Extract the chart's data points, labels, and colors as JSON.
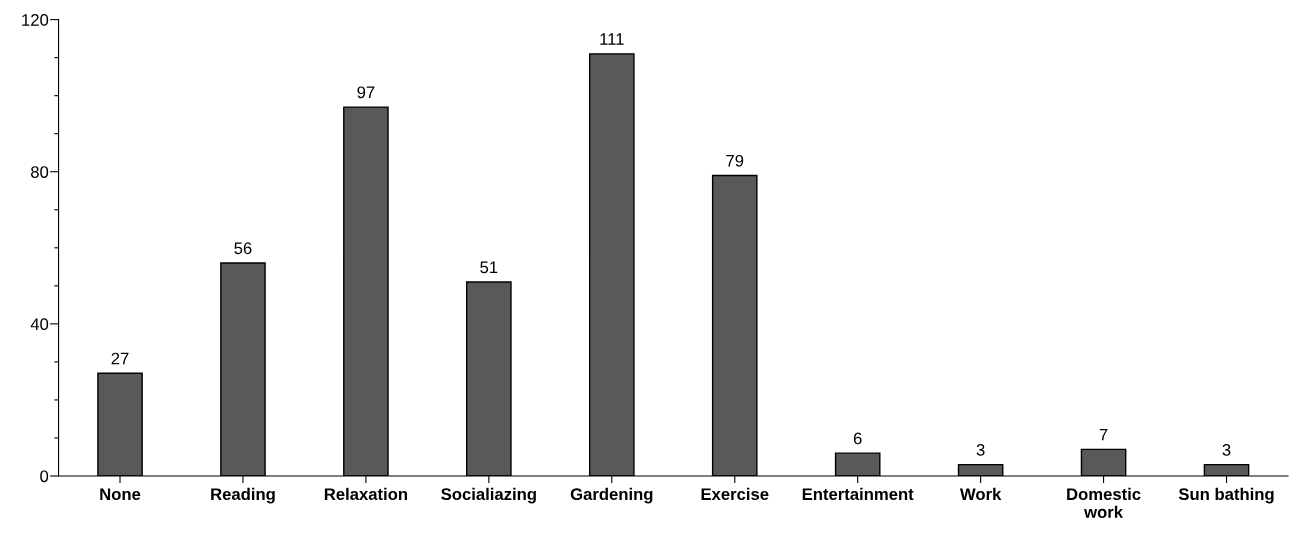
{
  "chart_data": {
    "type": "bar",
    "categories": [
      "None",
      "Reading",
      "Relaxation",
      "Socialiazing",
      "Gardening",
      "Exercise",
      "Entertainment",
      "Work",
      "Domestic\nwork",
      "Sun bathing"
    ],
    "values": [
      27,
      56,
      97,
      51,
      111,
      79,
      6,
      3,
      7,
      3
    ],
    "color": "#595959",
    "ylim": [
      0,
      120
    ],
    "yticks": [
      0,
      {
        "value": 10,
        "label": null
      },
      {
        "value": 20,
        "label": null
      },
      {
        "value": 30,
        "label": null
      },
      40,
      {
        "value": 50,
        "label": null
      },
      {
        "value": 60,
        "label": null
      },
      {
        "value": 70,
        "label": null
      },
      80,
      {
        "value": 90,
        "label": null
      },
      {
        "value": 100,
        "label": null
      },
      {
        "value": 110,
        "label": null
      },
      120
    ],
    "data_labels": true,
    "grid": false,
    "legend": false
  }
}
